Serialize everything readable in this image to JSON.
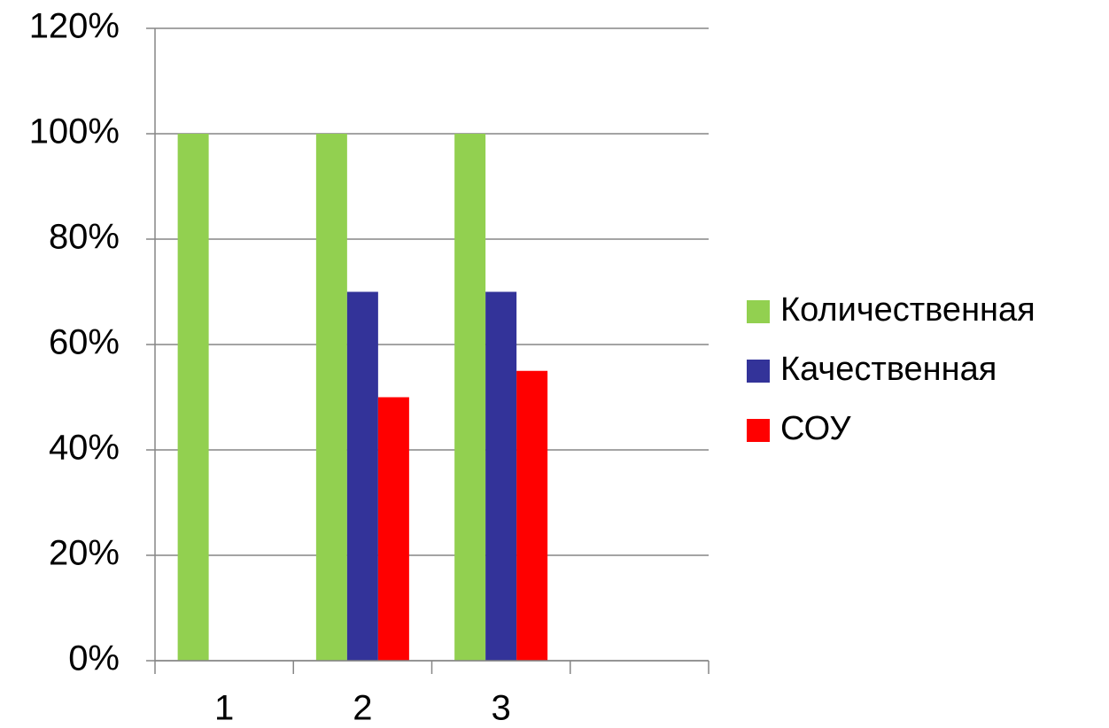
{
  "chart_data": {
    "type": "bar",
    "categories": [
      "1",
      "2",
      "3",
      null
    ],
    "series": [
      {
        "name": "Количественная",
        "color": "#92d050",
        "values": [
          100,
          100,
          100,
          null
        ]
      },
      {
        "name": "Качественная",
        "color": "#333399",
        "values": [
          null,
          70,
          70,
          null
        ]
      },
      {
        "name": "СОУ",
        "color": "#ff0000",
        "values": [
          null,
          50,
          55,
          null
        ]
      }
    ],
    "ylim": [
      0,
      120
    ],
    "yticks": [
      {
        "value": 0,
        "label": "0%"
      },
      {
        "value": 20,
        "label": "20%"
      },
      {
        "value": 40,
        "label": "40%"
      },
      {
        "value": 60,
        "label": "60%"
      },
      {
        "value": 80,
        "label": "80%"
      },
      {
        "value": 100,
        "label": "100%"
      },
      {
        "value": 120,
        "label": "120%"
      }
    ],
    "grid": true,
    "legend": "right"
  }
}
